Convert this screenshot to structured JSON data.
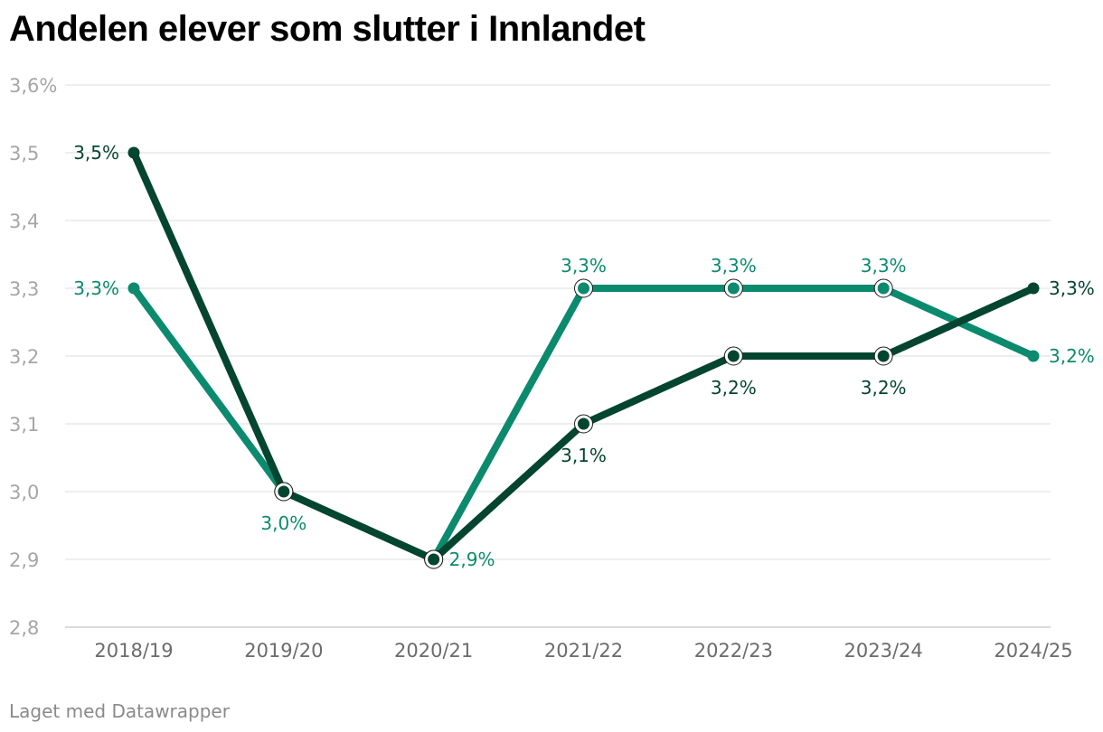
{
  "title": "Andelen elever som slutter i Innlandet",
  "footer": "Laget med Datawrapper",
  "chart_data": {
    "type": "line",
    "title": "Andelen elever som slutter i Innlandet",
    "categories": [
      "2018/19",
      "2019/20",
      "2020/21",
      "2021/22",
      "2022/23",
      "2023/24",
      "2024/25"
    ],
    "ylim": [
      2.8,
      3.6
    ],
    "yticks": [
      2.8,
      2.9,
      3.0,
      3.1,
      3.2,
      3.3,
      3.4,
      3.5,
      3.6
    ],
    "ytick_labels": [
      "2,8",
      "2,9",
      "3,0",
      "3,1",
      "3,2",
      "3,3",
      "3,4",
      "3,5",
      "3,6%"
    ],
    "grid": true,
    "legend": "none",
    "series": [
      {
        "color": "#0b8a6e",
        "values": [
          3.3,
          3.0,
          2.9,
          3.3,
          3.3,
          3.3,
          3.2
        ],
        "labels": [
          "3,3%",
          "3,0%",
          "2,9%",
          "3,3%",
          "3,3%",
          "3,3%",
          "3,2%"
        ],
        "label_positions": [
          "left",
          "below",
          "right",
          "above",
          "above",
          "above",
          "right"
        ]
      },
      {
        "color": "#04452f",
        "values": [
          3.5,
          3.0,
          2.9,
          3.1,
          3.2,
          3.2,
          3.3
        ],
        "labels": [
          "3,5%",
          "",
          "",
          "3,1%",
          "3,2%",
          "3,2%",
          "3,3%"
        ],
        "label_positions": [
          "left",
          "none",
          "none",
          "below",
          "below",
          "below",
          "right"
        ]
      }
    ]
  }
}
